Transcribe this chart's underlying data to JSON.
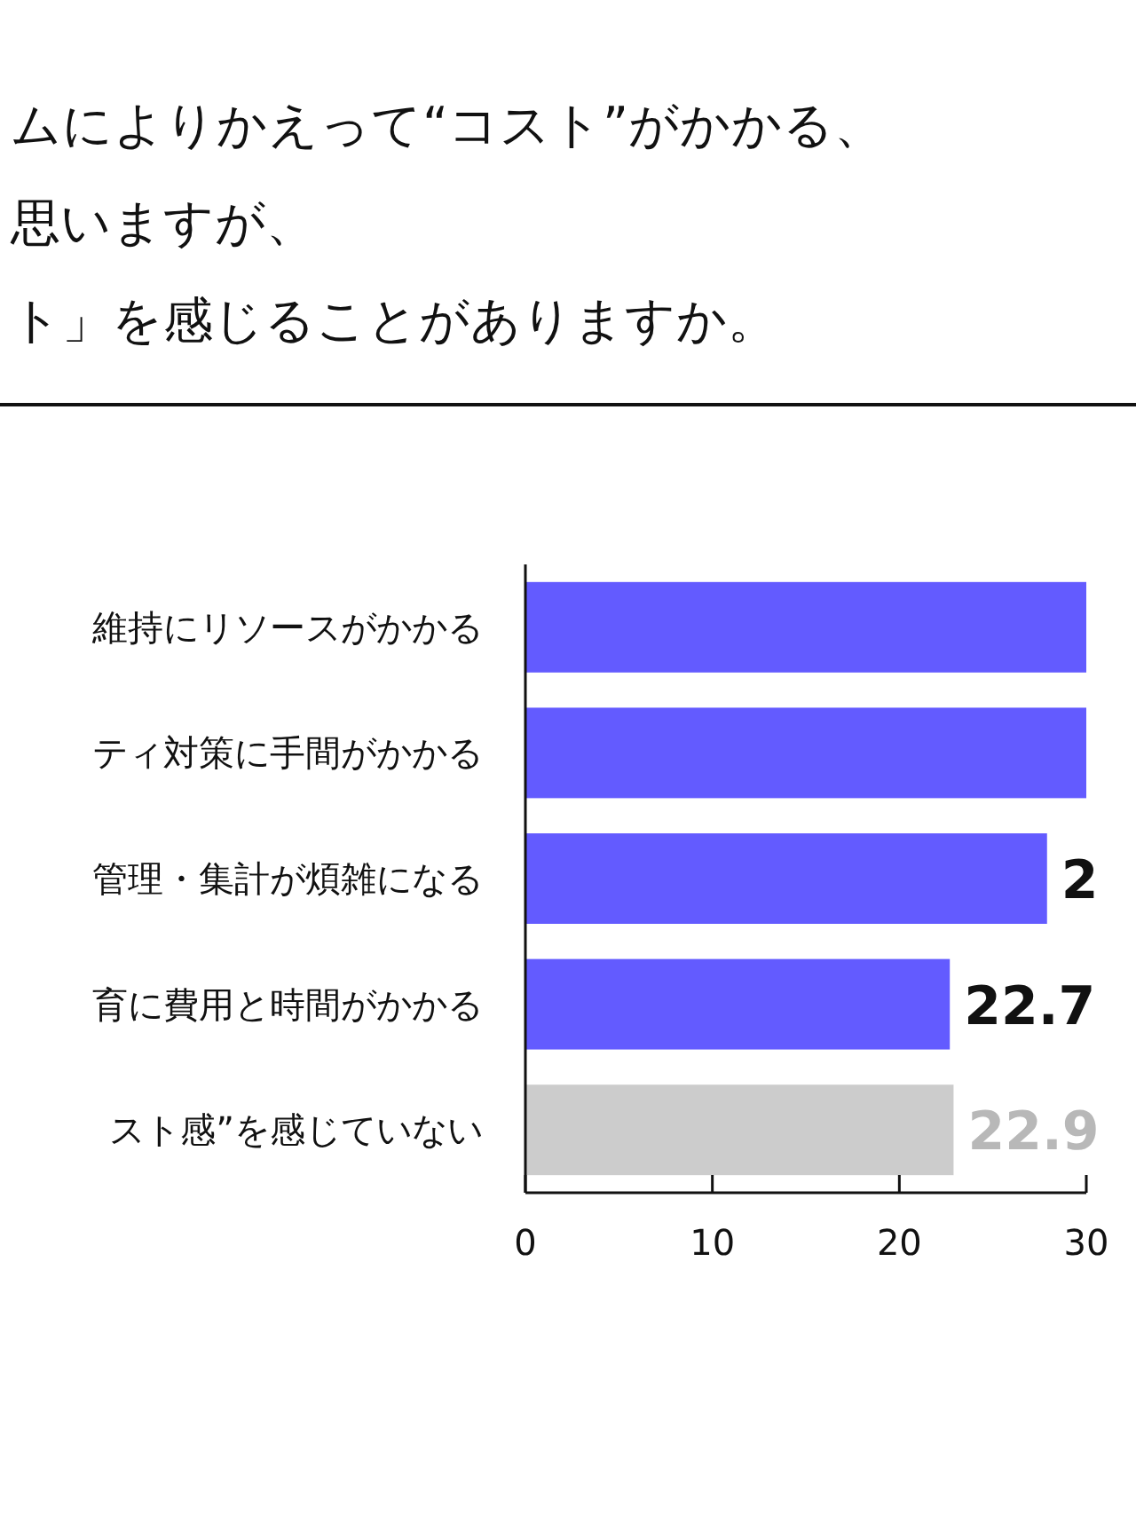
{
  "chart_data": {
    "type": "bar",
    "orientation": "horizontal",
    "title": "ムによりかえって“コスト”がかかる、",
    "subtitle": "思いますが、",
    "annotations": [
      "ト」を感じることがありますか。",
      {
        "text": "2",
        "x": 27.9,
        "y": "管理・集計が煩雑になる"
      }
    ],
    "categories": [
      "維持にリソースがかかる",
      "ティ対策に手間がかかる",
      "管理・集計が煩雑になる",
      "育に費用と時間がかかる",
      "スト感”を感じていない"
    ],
    "values": [
      30,
      30,
      27.9,
      22.7,
      22.9
    ],
    "colors": [
      "#635bff",
      "#635bff",
      "#635bff",
      "#635bff",
      "#cccccc"
    ],
    "value_labels": [
      null,
      null,
      null,
      "22.7",
      "22.9"
    ],
    "xlim": [
      0,
      30
    ],
    "xticks": [
      0,
      10,
      20,
      30
    ]
  }
}
